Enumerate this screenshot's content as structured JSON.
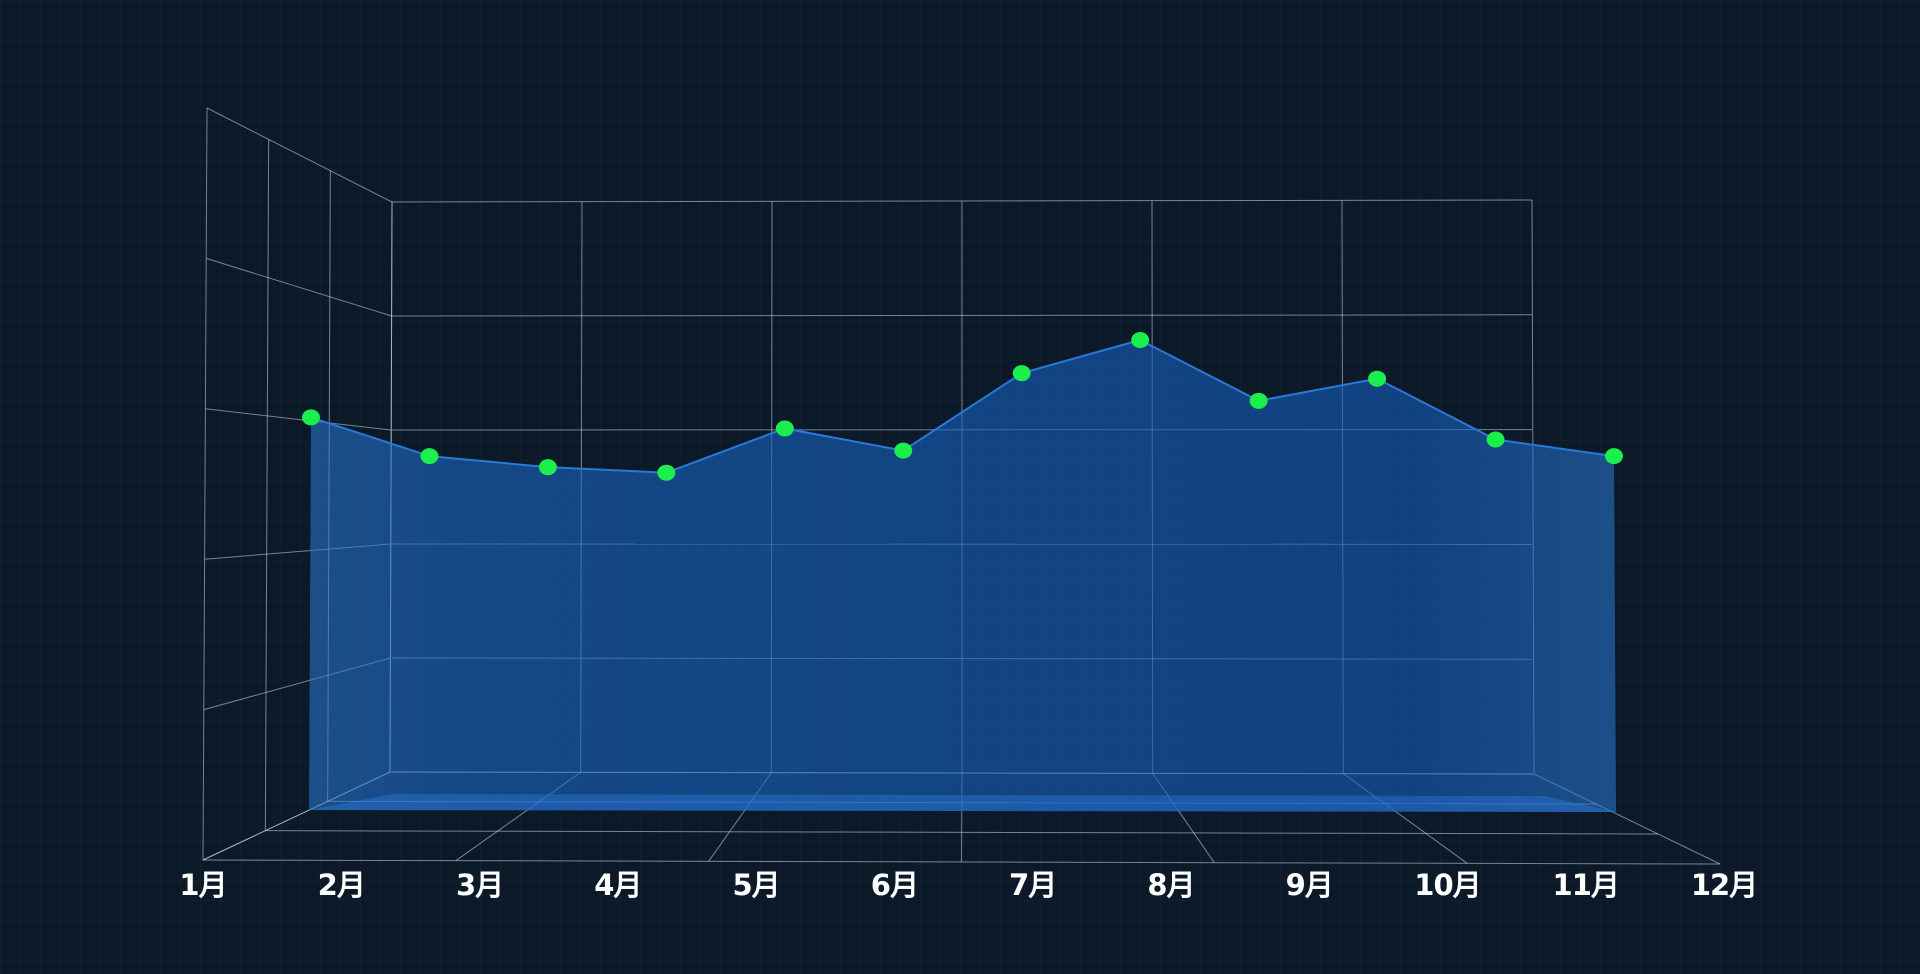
{
  "chart_data": {
    "type": "area",
    "categories": [
      "1月",
      "2月",
      "3月",
      "4月",
      "5月",
      "6月",
      "7月",
      "8月",
      "9月",
      "10月",
      "11月",
      "12月"
    ],
    "series": [
      {
        "values": [
          142,
          128,
          124,
          122,
          138,
          130,
          158,
          170,
          148,
          156,
          134,
          128
        ]
      }
    ],
    "ylim": [
      0,
      160
    ],
    "grid": true,
    "colors": {
      "area": "#1565c0",
      "line": "#2a78d8",
      "point": "#1aef4c",
      "grid": "#cddceb",
      "text": "#ffffff"
    }
  }
}
